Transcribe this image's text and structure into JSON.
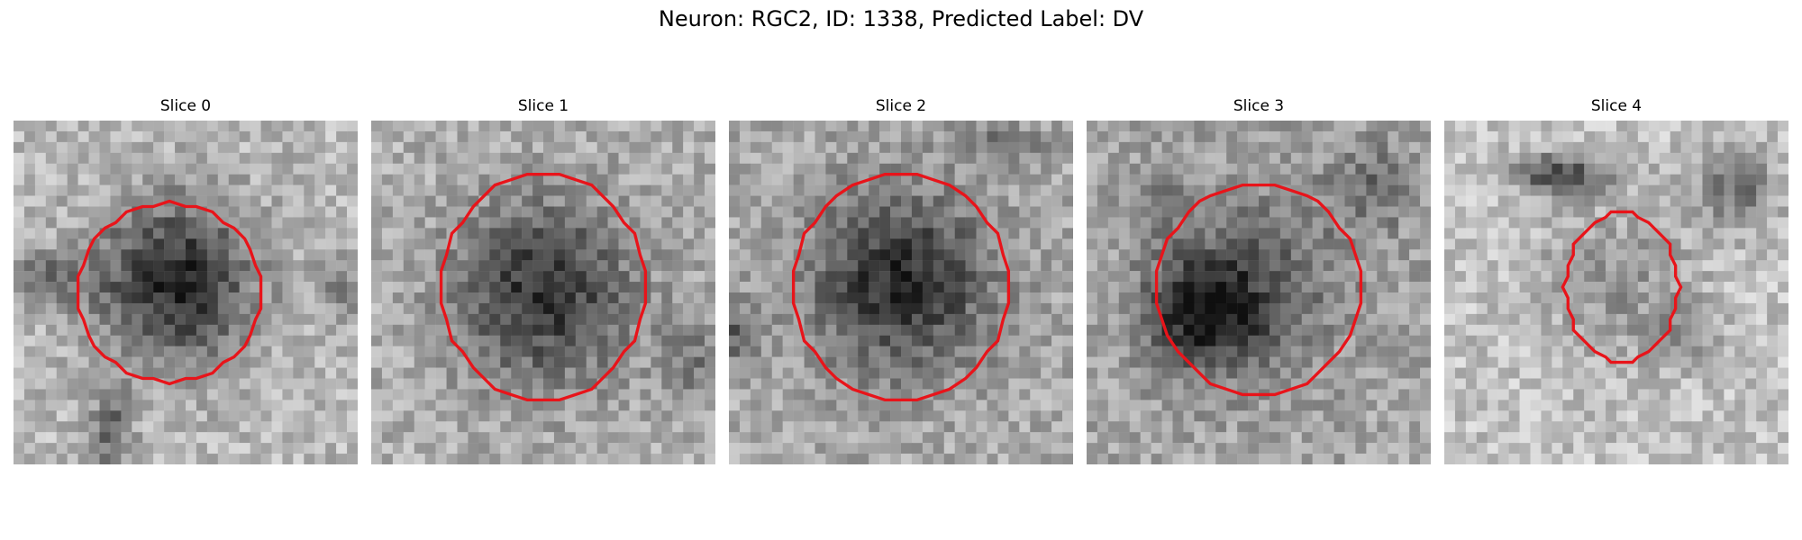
{
  "figure": {
    "title": "Neuron: RGC2, ID: 1338, Predicted Label: DV",
    "contour_color": "#e8141a"
  },
  "panels": [
    {
      "title": "Slice 0"
    },
    {
      "title": "Slice 1"
    },
    {
      "title": "Slice 2"
    },
    {
      "title": "Slice 3"
    },
    {
      "title": "Slice 4"
    }
  ]
}
